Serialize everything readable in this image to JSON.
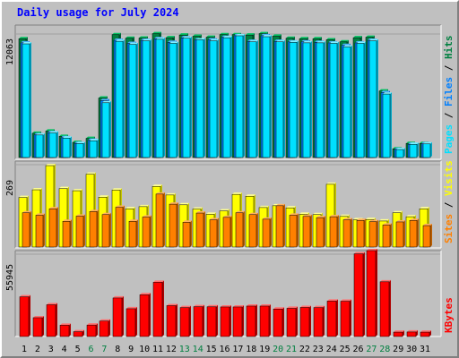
{
  "title": "Daily usage for July 2024",
  "colors": {
    "background": "#c0c0c0",
    "plot_bg": "#c0c0c0",
    "title": "#0000ff",
    "hits_front": "#008040",
    "hits_side": "#00663a",
    "hits_top": "#00c060",
    "files_front": "#0080ff",
    "files_side": "#005fbf",
    "files_top": "#4db0ff",
    "pages_front": "#00e0ff",
    "pages_side": "#00a8c8",
    "pages_top": "#80f0ff",
    "visits_front": "#ffff00",
    "visits_side": "#c8c800",
    "visits_top": "#ffff90",
    "sites_front": "#ff8000",
    "sites_side": "#c06000",
    "sites_top": "#ffb060",
    "kbytes_front": "#ff0000",
    "kbytes_side": "#b00000",
    "kbytes_top": "#ff7070",
    "weekend_label": "#008040",
    "weekday_label": "#000000"
  },
  "chart_data": [
    {
      "type": "bar",
      "panel": "hits-files-pages",
      "ytick": "12063",
      "ylim": [
        0,
        12063
      ],
      "legend": [
        {
          "name": "Pages",
          "color": "#00e0ff"
        },
        {
          "name": "Files",
          "color": "#0080ff"
        },
        {
          "name": "Hits",
          "color": "#008040"
        }
      ],
      "categories": [
        "1",
        "2",
        "3",
        "4",
        "5",
        "6",
        "7",
        "8",
        "9",
        "10",
        "11",
        "12",
        "13",
        "14",
        "15",
        "16",
        "17",
        "18",
        "19",
        "20",
        "21",
        "22",
        "23",
        "24",
        "25",
        "26",
        "27",
        "28",
        "29",
        "30",
        "31"
      ],
      "series": [
        {
          "name": "Hits",
          "values": [
            11600,
            2370,
            2590,
            2070,
            1480,
            1870,
            5810,
            12000,
            11650,
            11670,
            12100,
            11700,
            11960,
            11840,
            11750,
            12000,
            12000,
            11960,
            12100,
            11850,
            11650,
            11600,
            11600,
            11500,
            11300,
            11700,
            11750,
            6500,
            850,
            1380,
            1380
          ]
        },
        {
          "name": "Files",
          "values": [
            11200,
            2220,
            2440,
            1940,
            1390,
            1690,
            5560,
            11450,
            11150,
            11450,
            11600,
            11250,
            11700,
            11500,
            11500,
            11750,
            11900,
            11350,
            11900,
            11350,
            11300,
            11300,
            11250,
            11200,
            10950,
            11200,
            11450,
            6350,
            800,
            1300,
            1340
          ]
        },
        {
          "name": "Pages",
          "values": [
            11100,
            2200,
            2400,
            1900,
            1370,
            1640,
            5350,
            11350,
            11050,
            11400,
            11550,
            11150,
            11650,
            11500,
            11400,
            11700,
            11890,
            11300,
            11800,
            11300,
            11250,
            11200,
            11200,
            11150,
            10800,
            11150,
            11400,
            6200,
            780,
            1290,
            1330
          ]
        }
      ]
    },
    {
      "type": "bar",
      "panel": "visits-sites",
      "ytick": "269",
      "ylim": [
        0,
        269
      ],
      "legend": [
        {
          "name": "Sites",
          "color": "#ff8000"
        },
        {
          "name": "Visits",
          "color": "#ffff00"
        }
      ],
      "categories": [
        "1",
        "2",
        "3",
        "4",
        "5",
        "6",
        "7",
        "8",
        "9",
        "10",
        "11",
        "12",
        "13",
        "14",
        "15",
        "16",
        "17",
        "18",
        "19",
        "20",
        "21",
        "22",
        "23",
        "24",
        "25",
        "26",
        "27",
        "28",
        "29",
        "30",
        "31"
      ],
      "series": [
        {
          "name": "Visits",
          "values": [
            162,
            187,
            266,
            191,
            184,
            238,
            163,
            186,
            125,
            132,
            198,
            170,
            138,
            124,
            107,
            118,
            172,
            166,
            129,
            135,
            128,
            107,
            106,
            205,
            100,
            89,
            90,
            85,
            112,
            99,
            125
          ]
        },
        {
          "name": "Sites",
          "values": [
            112,
            104,
            125,
            84,
            101,
            116,
            106,
            130,
            84,
            98,
            173,
            140,
            81,
            111,
            89,
            97,
            112,
            106,
            91,
            135,
            104,
            100,
            96,
            99,
            89,
            87,
            83,
            72,
            82,
            87,
            70
          ]
        }
      ]
    },
    {
      "type": "bar",
      "panel": "kbytes",
      "ytick": "55945",
      "ylim": [
        0,
        55945
      ],
      "legend": [
        {
          "name": "KBytes",
          "color": "#ff0000"
        }
      ],
      "categories": [
        "1",
        "2",
        "3",
        "4",
        "5",
        "6",
        "7",
        "8",
        "9",
        "10",
        "11",
        "12",
        "13",
        "14",
        "15",
        "16",
        "17",
        "18",
        "19",
        "20",
        "21",
        "22",
        "23",
        "24",
        "25",
        "26",
        "27",
        "28",
        "29",
        "30",
        "31"
      ],
      "series": [
        {
          "name": "KBytes",
          "values": [
            27000,
            12800,
            21600,
            7700,
            3300,
            7800,
            10500,
            26200,
            18900,
            28400,
            36900,
            21000,
            19700,
            20300,
            20200,
            20100,
            20100,
            20700,
            20700,
            18700,
            19200,
            19800,
            19700,
            24100,
            24000,
            56200,
            58400,
            37200,
            3000,
            3100,
            3000
          ]
        }
      ]
    }
  ]
}
